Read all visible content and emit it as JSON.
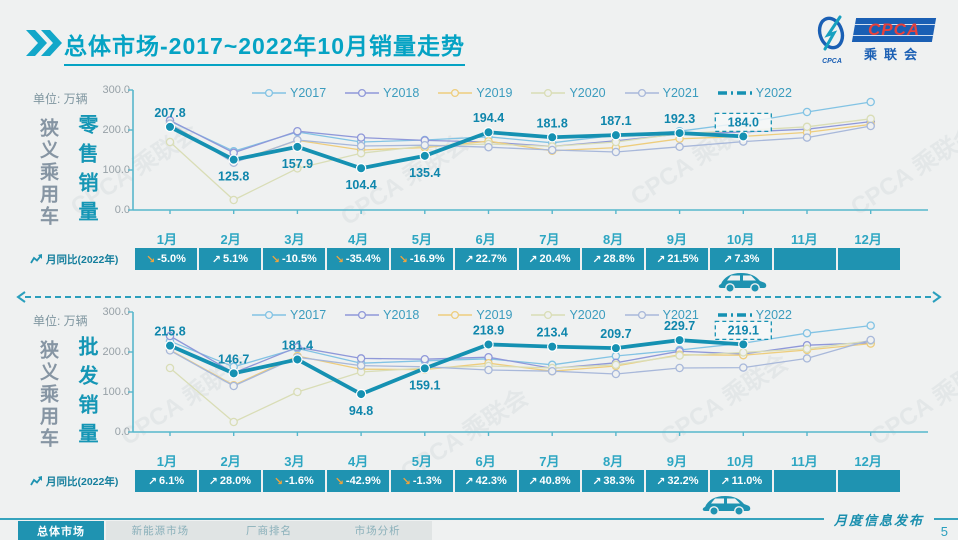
{
  "header": {
    "title": "总体市场-2017~2022年10月销量走势",
    "logo": {
      "cpca": "CPCA",
      "cpca_small": "CPCA",
      "cn": "乘联会"
    }
  },
  "watermark": "CPCA 乘联会",
  "sections": [
    {
      "unit": "单位: 万辆",
      "category": "狭义乘用车",
      "measure": "零售销量"
    },
    {
      "unit": "单位: 万辆",
      "category": "狭义乘用车",
      "measure": "批发销量"
    }
  ],
  "chart_data": [
    {
      "type": "line",
      "name": "retail",
      "title": "狭义乘用车零售销量",
      "ylabel": "万辆",
      "ylim": [
        0,
        300
      ],
      "y_ticks": [
        "300.0",
        "200.0",
        "100.0",
        "0.0"
      ],
      "x": [
        "1月",
        "2月",
        "3月",
        "4月",
        "5月",
        "6月",
        "7月",
        "8月",
        "9月",
        "10月",
        "11月",
        "12月"
      ],
      "legend_position": "top",
      "series": [
        {
          "name": "Y2017",
          "color": "#82c3e4",
          "values": [
            222,
            147,
            195,
            170,
            175,
            183,
            168,
            187,
            197,
            218,
            245,
            270
          ]
        },
        {
          "name": "Y2018",
          "color": "#8f98d9",
          "values": [
            224,
            143,
            197,
            181,
            174,
            170,
            159,
            173,
            190,
            195,
            202,
            221
          ]
        },
        {
          "name": "Y2019",
          "color": "#eecd7d",
          "values": [
            216,
            120,
            174,
            150,
            156,
            172,
            148,
            156,
            178,
            184,
            194,
            214
          ]
        },
        {
          "name": "Y2020",
          "color": "#d9ddb6",
          "values": [
            170,
            25,
            104,
            142,
            160,
            165,
            159,
            170,
            191,
            199,
            208,
            228
          ]
        },
        {
          "name": "Y2021",
          "color": "#a8b8da",
          "values": [
            216,
            118,
            175,
            160,
            162,
            157,
            150,
            145,
            158,
            171,
            181,
            210
          ]
        },
        {
          "name": "Y2022",
          "color": "#1591b2",
          "highlight": true,
          "values": [
            207.8,
            125.8,
            157.9,
            104.4,
            135.4,
            194.4,
            181.8,
            187.1,
            192.3,
            184.0
          ],
          "labels": [
            "207.8",
            "125.8",
            "157.9",
            "104.4",
            "135.4",
            "194.4",
            "181.8",
            "187.1",
            "192.3",
            "184.0"
          ],
          "label_pos": [
            "above",
            "below",
            "below",
            "below",
            "below",
            "above",
            "above",
            "above",
            "above",
            "above"
          ],
          "boxed_last": true
        }
      ],
      "mom": {
        "label": "月同比(2022年)",
        "values": [
          "-5.0%",
          "5.1%",
          "-10.5%",
          "-35.4%",
          "-16.9%",
          "22.7%",
          "20.4%",
          "28.8%",
          "21.5%",
          "7.3%",
          "",
          ""
        ]
      }
    },
    {
      "type": "line",
      "name": "wholesale",
      "title": "狭义乘用车批发销量",
      "ylabel": "万辆",
      "ylim": [
        0,
        300
      ],
      "y_ticks": [
        "300.0",
        "200.0",
        "100.0",
        "0.0"
      ],
      "x": [
        "1月",
        "2月",
        "3月",
        "4月",
        "5月",
        "6月",
        "7月",
        "8月",
        "9月",
        "10月",
        "11月",
        "12月"
      ],
      "legend_position": "top",
      "series": [
        {
          "name": "Y2017",
          "color": "#82c3e4",
          "values": [
            227,
            163,
            209,
            172,
            178,
            183,
            168,
            190,
            205,
            222,
            247,
            266
          ]
        },
        {
          "name": "Y2018",
          "color": "#8f98d9",
          "values": [
            240,
            148,
            212,
            184,
            182,
            187,
            159,
            173,
            202,
            195,
            217,
            223
          ]
        },
        {
          "name": "Y2019",
          "color": "#eecd7d",
          "values": [
            205,
            117,
            190,
            157,
            156,
            172,
            152,
            165,
            193,
            192,
            205,
            221
          ]
        },
        {
          "name": "Y2020",
          "color": "#d9ddb6",
          "values": [
            160,
            25,
            100,
            150,
            160,
            165,
            160,
            168,
            191,
            199,
            208,
            228
          ]
        },
        {
          "name": "Y2021",
          "color": "#a8b8da",
          "values": [
            204,
            115,
            187,
            166,
            163,
            155,
            152,
            145,
            160,
            161,
            184,
            230
          ]
        },
        {
          "name": "Y2022",
          "color": "#1591b2",
          "highlight": true,
          "values": [
            215.8,
            146.7,
            181.4,
            94.8,
            159.1,
            218.9,
            213.4,
            209.7,
            229.7,
            219.1
          ],
          "labels": [
            "215.8",
            "146.7",
            "181.4",
            "94.8",
            "159.1",
            "218.9",
            "213.4",
            "209.7",
            "229.7",
            "219.1"
          ],
          "label_pos": [
            "above",
            "above",
            "above",
            "below",
            "below",
            "above",
            "above",
            "above",
            "above",
            "above"
          ],
          "boxed_last": true
        }
      ],
      "mom": {
        "label": "月同比(2022年)",
        "values": [
          "6.1%",
          "28.0%",
          "-1.6%",
          "-42.9%",
          "-1.3%",
          "42.3%",
          "40.8%",
          "38.3%",
          "32.2%",
          "11.0%",
          "",
          ""
        ]
      }
    }
  ],
  "footer": {
    "tabs": [
      {
        "label": "总体市场",
        "active": true
      },
      {
        "label": "新能源市场",
        "active": false
      },
      {
        "label": "厂商排名",
        "active": false
      },
      {
        "label": "市场分析",
        "active": false
      }
    ],
    "release": "月度信息发布",
    "page": "5"
  }
}
